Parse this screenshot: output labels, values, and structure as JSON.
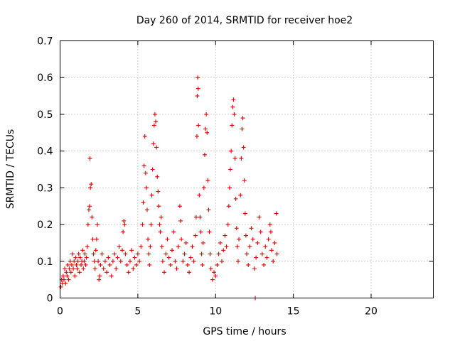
{
  "chart_data": {
    "type": "scatter",
    "title": "Day 260 of 2014, SRMTID for receiver hoe2",
    "xlabel": "GPS time / hours",
    "ylabel": "SRMTID / TECUs",
    "xlim": [
      0,
      24
    ],
    "ylim": [
      0,
      0.7
    ],
    "x_ticks": [
      0,
      5,
      10,
      15,
      20
    ],
    "x_tick_labels": [
      "0",
      "5",
      "10",
      "15",
      "20"
    ],
    "y_ticks": [
      0,
      0.1,
      0.2,
      0.3,
      0.4,
      0.5,
      0.6,
      0.7
    ],
    "y_tick_labels": [
      "0",
      "0.1",
      "0.2",
      "0.3",
      "0.4",
      "0.5",
      "0.6",
      "0.7"
    ],
    "grid": true,
    "marker": "+",
    "color": "#e00000",
    "series": [
      {
        "name": "hoe2",
        "points": [
          [
            0.05,
            0.03
          ],
          [
            0.1,
            0.05
          ],
          [
            0.15,
            0.04
          ],
          [
            0.2,
            0.06
          ],
          [
            0.25,
            0.05
          ],
          [
            0.3,
            0.08
          ],
          [
            0.35,
            0.04
          ],
          [
            0.4,
            0.07
          ],
          [
            0.45,
            0.06
          ],
          [
            0.5,
            0.09
          ],
          [
            0.55,
            0.05
          ],
          [
            0.6,
            0.08
          ],
          [
            0.65,
            0.1
          ],
          [
            0.7,
            0.07
          ],
          [
            0.75,
            0.09
          ],
          [
            0.8,
            0.12
          ],
          [
            0.85,
            0.08
          ],
          [
            0.9,
            0.1
          ],
          [
            0.95,
            0.06
          ],
          [
            1.0,
            0.11
          ],
          [
            1.05,
            0.09
          ],
          [
            1.1,
            0.08
          ],
          [
            1.15,
            0.1
          ],
          [
            1.2,
            0.12
          ],
          [
            1.25,
            0.07
          ],
          [
            1.3,
            0.11
          ],
          [
            1.35,
            0.09
          ],
          [
            1.4,
            0.1
          ],
          [
            1.45,
            0.13
          ],
          [
            1.5,
            0.08
          ],
          [
            1.55,
            0.1
          ],
          [
            1.6,
            0.12
          ],
          [
            1.65,
            0.09
          ],
          [
            1.7,
            0.11
          ],
          [
            1.75,
            0.14
          ],
          [
            1.8,
            0.2
          ],
          [
            1.85,
            0.24
          ],
          [
            1.9,
            0.25
          ],
          [
            1.92,
            0.38
          ],
          [
            1.95,
            0.3
          ],
          [
            2.0,
            0.31
          ],
          [
            2.05,
            0.22
          ],
          [
            2.1,
            0.16
          ],
          [
            2.15,
            0.12
          ],
          [
            2.2,
            0.1
          ],
          [
            2.25,
            0.08
          ],
          [
            2.3,
            0.13
          ],
          [
            2.35,
            0.16
          ],
          [
            2.4,
            0.2
          ],
          [
            2.45,
            0.1
          ],
          [
            2.5,
            0.05
          ],
          [
            2.55,
            0.06
          ],
          [
            2.6,
            0.09
          ],
          [
            2.7,
            0.12
          ],
          [
            2.8,
            0.08
          ],
          [
            2.9,
            0.1
          ],
          [
            3.0,
            0.07
          ],
          [
            3.1,
            0.11
          ],
          [
            3.2,
            0.09
          ],
          [
            3.3,
            0.06
          ],
          [
            3.4,
            0.1
          ],
          [
            3.5,
            0.12
          ],
          [
            3.6,
            0.08
          ],
          [
            3.7,
            0.11
          ],
          [
            3.8,
            0.14
          ],
          [
            3.9,
            0.1
          ],
          [
            4.0,
            0.13
          ],
          [
            4.05,
            0.18
          ],
          [
            4.1,
            0.21
          ],
          [
            4.15,
            0.2
          ],
          [
            4.2,
            0.12
          ],
          [
            4.3,
            0.09
          ],
          [
            4.4,
            0.07
          ],
          [
            4.5,
            0.1
          ],
          [
            4.6,
            0.13
          ],
          [
            4.7,
            0.08
          ],
          [
            4.8,
            0.11
          ],
          [
            4.9,
            0.09
          ],
          [
            5.0,
            0.12
          ],
          [
            5.1,
            0.1
          ],
          [
            5.2,
            0.14
          ],
          [
            5.3,
            0.2
          ],
          [
            5.35,
            0.26
          ],
          [
            5.4,
            0.36
          ],
          [
            5.45,
            0.44
          ],
          [
            5.5,
            0.34
          ],
          [
            5.55,
            0.3
          ],
          [
            5.6,
            0.24
          ],
          [
            5.65,
            0.16
          ],
          [
            5.7,
            0.12
          ],
          [
            5.75,
            0.09
          ],
          [
            5.8,
            0.14
          ],
          [
            5.85,
            0.2
          ],
          [
            5.9,
            0.28
          ],
          [
            5.95,
            0.35
          ],
          [
            6.0,
            0.42
          ],
          [
            6.05,
            0.47
          ],
          [
            6.1,
            0.5
          ],
          [
            6.15,
            0.48
          ],
          [
            6.2,
            0.41
          ],
          [
            6.25,
            0.33
          ],
          [
            6.3,
            0.29
          ],
          [
            6.35,
            0.25
          ],
          [
            6.4,
            0.2
          ],
          [
            6.45,
            0.18
          ],
          [
            6.5,
            0.22
          ],
          [
            6.55,
            0.14
          ],
          [
            6.6,
            0.1
          ],
          [
            6.7,
            0.07
          ],
          [
            6.8,
            0.12
          ],
          [
            6.9,
            0.16
          ],
          [
            7.0,
            0.11
          ],
          [
            7.1,
            0.09
          ],
          [
            7.2,
            0.13
          ],
          [
            7.3,
            0.18
          ],
          [
            7.4,
            0.1
          ],
          [
            7.5,
            0.08
          ],
          [
            7.6,
            0.14
          ],
          [
            7.7,
            0.25
          ],
          [
            7.75,
            0.21
          ],
          [
            7.8,
            0.16
          ],
          [
            7.9,
            0.1
          ],
          [
            8.0,
            0.12
          ],
          [
            8.1,
            0.15
          ],
          [
            8.2,
            0.09
          ],
          [
            8.3,
            0.07
          ],
          [
            8.4,
            0.11
          ],
          [
            8.5,
            0.14
          ],
          [
            8.6,
            0.1
          ],
          [
            8.7,
            0.17
          ],
          [
            8.75,
            0.22
          ],
          [
            8.8,
            0.44
          ],
          [
            8.82,
            0.55
          ],
          [
            8.85,
            0.6
          ],
          [
            8.88,
            0.57
          ],
          [
            8.9,
            0.47
          ],
          [
            8.95,
            0.28
          ],
          [
            9.0,
            0.22
          ],
          [
            9.05,
            0.18
          ],
          [
            9.1,
            0.12
          ],
          [
            9.15,
            0.09
          ],
          [
            9.2,
            0.15
          ],
          [
            9.25,
            0.3
          ],
          [
            9.3,
            0.39
          ],
          [
            9.35,
            0.46
          ],
          [
            9.4,
            0.5
          ],
          [
            9.45,
            0.45
          ],
          [
            9.5,
            0.32
          ],
          [
            9.55,
            0.24
          ],
          [
            9.6,
            0.18
          ],
          [
            9.65,
            0.12
          ],
          [
            9.7,
            0.08
          ],
          [
            9.8,
            0.05
          ],
          [
            9.9,
            0.07
          ],
          [
            10.0,
            0.06
          ],
          [
            10.1,
            0.09
          ],
          [
            10.2,
            0.12
          ],
          [
            10.3,
            0.15
          ],
          [
            10.4,
            0.1
          ],
          [
            10.5,
            0.13
          ],
          [
            10.6,
            0.17
          ],
          [
            10.7,
            0.14
          ],
          [
            10.8,
            0.2
          ],
          [
            10.85,
            0.25
          ],
          [
            10.9,
            0.3
          ],
          [
            10.95,
            0.35
          ],
          [
            11.0,
            0.4
          ],
          [
            11.05,
            0.47
          ],
          [
            11.1,
            0.52
          ],
          [
            11.15,
            0.54
          ],
          [
            11.2,
            0.5
          ],
          [
            11.25,
            0.38
          ],
          [
            11.3,
            0.27
          ],
          [
            11.35,
            0.19
          ],
          [
            11.4,
            0.14
          ],
          [
            11.45,
            0.1
          ],
          [
            11.5,
            0.16
          ],
          [
            11.6,
            0.28
          ],
          [
            11.65,
            0.38
          ],
          [
            11.7,
            0.46
          ],
          [
            11.75,
            0.49
          ],
          [
            11.8,
            0.41
          ],
          [
            11.85,
            0.32
          ],
          [
            11.9,
            0.23
          ],
          [
            11.95,
            0.17
          ],
          [
            12.0,
            0.12
          ],
          [
            12.1,
            0.09
          ],
          [
            12.2,
            0.14
          ],
          [
            12.3,
            0.19
          ],
          [
            12.4,
            0.16
          ],
          [
            12.5,
            0.08
          ],
          [
            12.55,
            0.0
          ],
          [
            12.6,
            0.11
          ],
          [
            12.7,
            0.15
          ],
          [
            12.8,
            0.22
          ],
          [
            12.9,
            0.18
          ],
          [
            13.0,
            0.12
          ],
          [
            13.1,
            0.09
          ],
          [
            13.2,
            0.14
          ],
          [
            13.3,
            0.11
          ],
          [
            13.4,
            0.16
          ],
          [
            13.5,
            0.2
          ],
          [
            13.55,
            0.18
          ],
          [
            13.6,
            0.13
          ],
          [
            13.7,
            0.1
          ],
          [
            13.8,
            0.15
          ],
          [
            13.9,
            0.23
          ],
          [
            13.95,
            0.12
          ]
        ]
      }
    ]
  }
}
